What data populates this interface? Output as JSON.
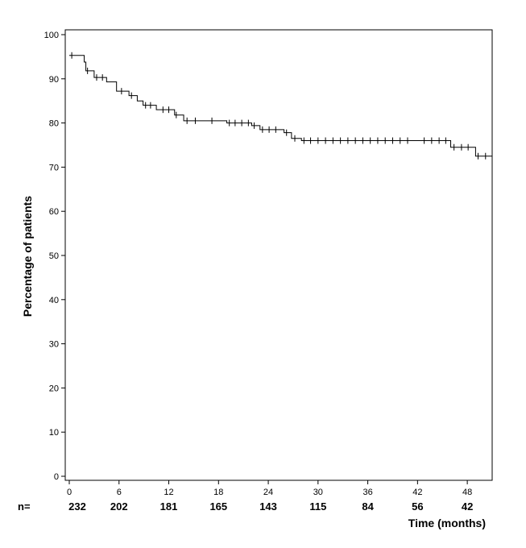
{
  "chart_data": {
    "type": "line",
    "style": "kaplan-meier step curve with censor ticks",
    "ylabel": "Percentage of patients",
    "xlabel": "Time (months)",
    "xlim": [
      0,
      51
    ],
    "ylim": [
      0,
      100
    ],
    "x_ticks": [
      0,
      6,
      12,
      18,
      24,
      30,
      36,
      42,
      48
    ],
    "x_tick_labels": [
      "0",
      "6",
      "12",
      "18",
      "24",
      "30",
      "36",
      "42",
      "48"
    ],
    "y_ticks": [
      0,
      10,
      20,
      30,
      40,
      50,
      60,
      70,
      80,
      90,
      100
    ],
    "y_tick_labels": [
      "0",
      "10",
      "20",
      "30",
      "40",
      "50",
      "60",
      "70",
      "80",
      "90",
      "100"
    ],
    "grid": false,
    "series": [
      {
        "steps": [
          [
            0,
            95.3
          ],
          [
            1.8,
            93.8
          ],
          [
            2,
            91.8
          ],
          [
            3,
            90.3
          ],
          [
            4.5,
            89.3
          ],
          [
            5.7,
            87.2
          ],
          [
            7.2,
            86.2
          ],
          [
            8.2,
            85.0
          ],
          [
            8.9,
            84.0
          ],
          [
            10.5,
            83.0
          ],
          [
            12.7,
            81.8
          ],
          [
            13.8,
            80.5
          ],
          [
            19,
            80.0
          ],
          [
            22,
            79.4
          ],
          [
            23,
            78.5
          ],
          [
            25.9,
            77.8
          ],
          [
            26.8,
            76.5
          ],
          [
            28,
            76.0
          ],
          [
            46,
            74.5
          ],
          [
            49,
            72.5
          ],
          [
            51,
            72.5
          ]
        ],
        "censored": [
          [
            0.3,
            95.3
          ],
          [
            2.2,
            91.8
          ],
          [
            3.3,
            90.3
          ],
          [
            4,
            90.3
          ],
          [
            6.3,
            87.2
          ],
          [
            7.5,
            86.2
          ],
          [
            9.2,
            84.0
          ],
          [
            9.8,
            84.0
          ],
          [
            11.3,
            83.0
          ],
          [
            12,
            83.0
          ],
          [
            12.9,
            81.8
          ],
          [
            14.2,
            80.5
          ],
          [
            15.2,
            80.5
          ],
          [
            17.2,
            80.5
          ],
          [
            19.3,
            80.0
          ],
          [
            20,
            80.0
          ],
          [
            20.8,
            80.0
          ],
          [
            21.6,
            80.0
          ],
          [
            22.3,
            79.4
          ],
          [
            23.3,
            78.5
          ],
          [
            24.1,
            78.5
          ],
          [
            24.9,
            78.5
          ],
          [
            26.2,
            77.8
          ],
          [
            27.2,
            76.5
          ],
          [
            28.3,
            76.0
          ],
          [
            29.1,
            76.0
          ],
          [
            30,
            76.0
          ],
          [
            30.9,
            76.0
          ],
          [
            31.8,
            76.0
          ],
          [
            32.7,
            76.0
          ],
          [
            33.6,
            76.0
          ],
          [
            34.5,
            76.0
          ],
          [
            35.4,
            76.0
          ],
          [
            36.3,
            76.0
          ],
          [
            37.2,
            76.0
          ],
          [
            38.1,
            76.0
          ],
          [
            39,
            76.0
          ],
          [
            39.9,
            76.0
          ],
          [
            40.8,
            76.0
          ],
          [
            42.8,
            76.0
          ],
          [
            43.7,
            76.0
          ],
          [
            44.6,
            76.0
          ],
          [
            45.4,
            76.0
          ],
          [
            46.4,
            74.5
          ],
          [
            47.3,
            74.5
          ],
          [
            48.1,
            74.5
          ],
          [
            49.3,
            72.5
          ],
          [
            50.2,
            72.5
          ]
        ]
      }
    ],
    "at_risk": {
      "prefix": "n=",
      "values": [
        "232",
        "202",
        "181",
        "165",
        "143",
        "115",
        "84",
        "56",
        "42"
      ]
    }
  }
}
